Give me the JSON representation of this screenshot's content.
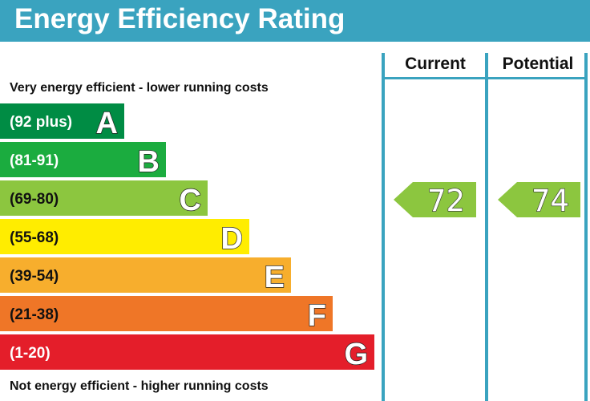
{
  "title": "Energy Efficiency Rating",
  "chart_data": {
    "type": "bar",
    "title": "Energy Efficiency Rating",
    "top_note": "Very energy efficient - lower running costs",
    "bottom_note": "Not energy efficient - higher running costs",
    "bands": [
      {
        "letter": "A",
        "range": "(92 plus)",
        "min": 92,
        "max": 100,
        "color": "#008c44"
      },
      {
        "letter": "B",
        "range": "(81-91)",
        "min": 81,
        "max": 91,
        "color": "#1bac3f"
      },
      {
        "letter": "C",
        "range": "(69-80)",
        "min": 69,
        "max": 80,
        "color": "#8cc63f"
      },
      {
        "letter": "D",
        "range": "(55-68)",
        "min": 55,
        "max": 68,
        "color": "#ffed00"
      },
      {
        "letter": "E",
        "range": "(39-54)",
        "min": 39,
        "max": 54,
        "color": "#f7ae2d"
      },
      {
        "letter": "F",
        "range": "(21-38)",
        "min": 21,
        "max": 38,
        "color": "#ef7627"
      },
      {
        "letter": "G",
        "range": "(1-20)",
        "min": 1,
        "max": 20,
        "color": "#e41e2a"
      }
    ],
    "columns": [
      "Current",
      "Potential"
    ],
    "ratings": [
      {
        "column": "Current",
        "value": 72,
        "band": "C"
      },
      {
        "column": "Potential",
        "value": 74,
        "band": "C"
      }
    ]
  },
  "colors": {
    "header": "#3aa3bf",
    "divider": "#3aa3bf",
    "range_text_dark": "#111111",
    "range_text_light": "#ffffff"
  }
}
